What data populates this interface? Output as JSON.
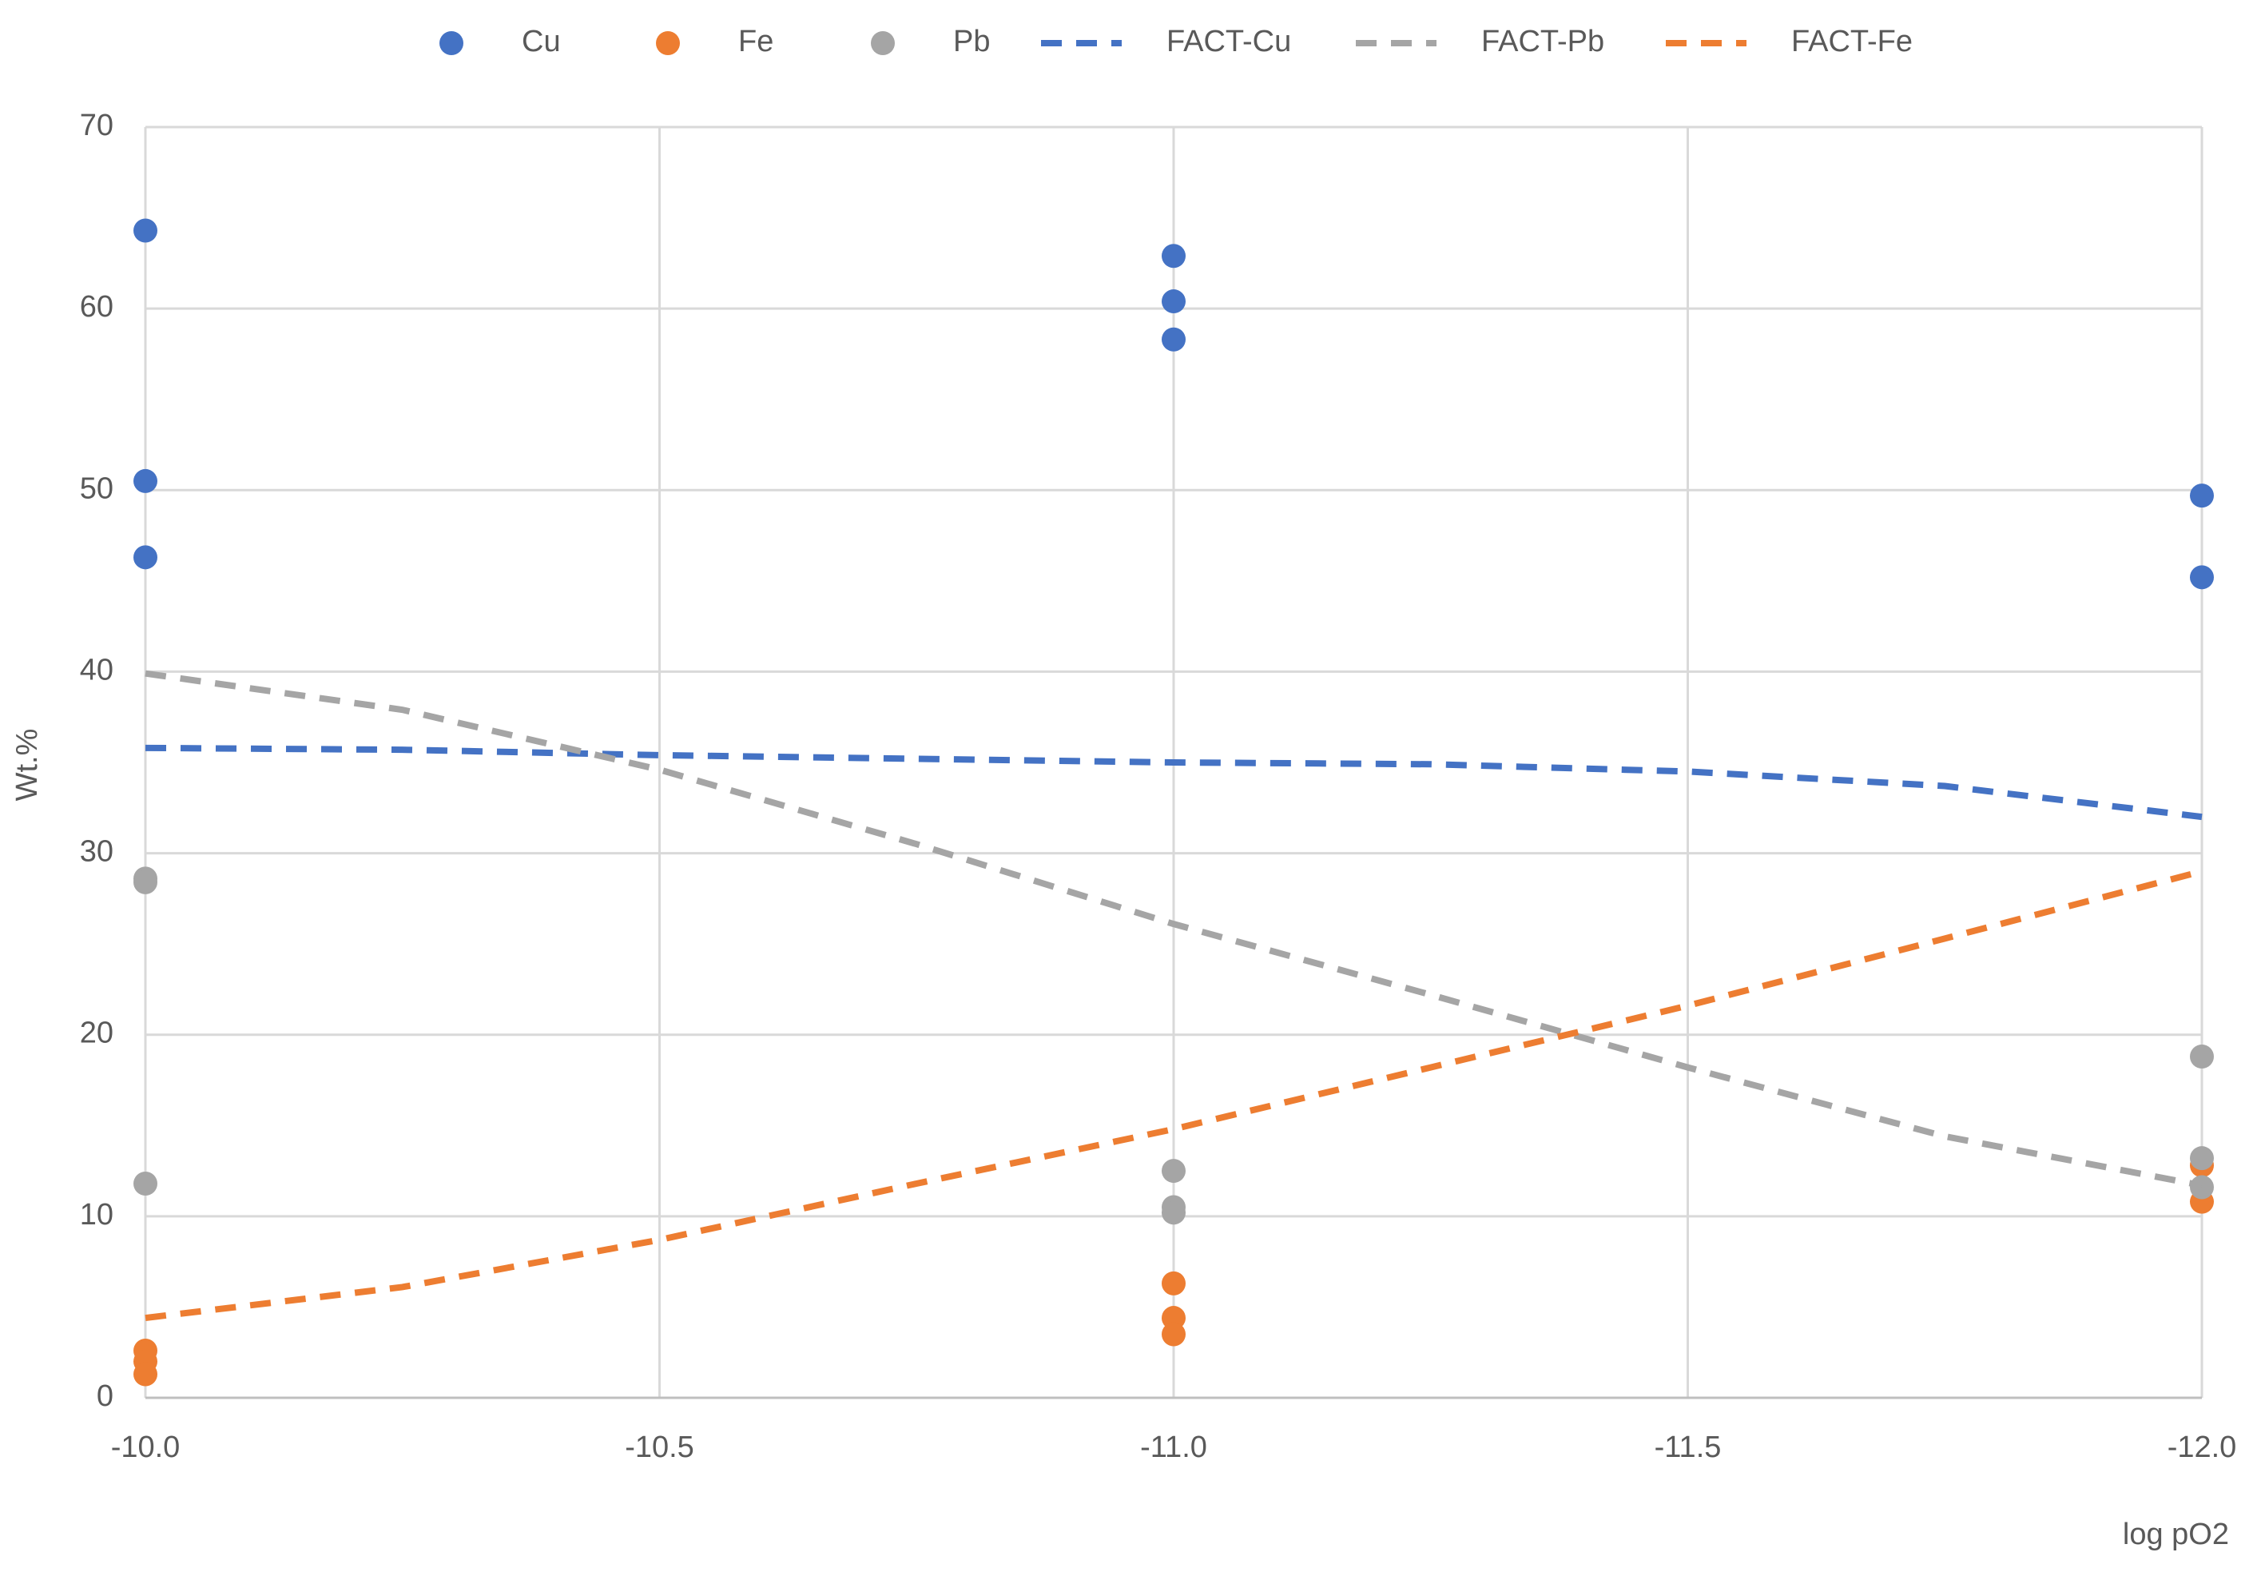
{
  "chart_data": {
    "type": "scatter",
    "x_label": "log pO2",
    "y_label": "Wt.%",
    "xlim": [
      -10,
      -12
    ],
    "xticks": [
      {
        "value": -10,
        "label": "-10.0"
      },
      -10.5,
      {
        "value": -11,
        "label": "-11.0"
      },
      -11.5,
      {
        "value": -12,
        "label": "-12.0"
      }
    ],
    "ylim": [
      0,
      70
    ],
    "yticks": [
      0,
      10,
      20,
      30,
      40,
      50,
      60,
      70
    ],
    "grid": true,
    "legend": "top",
    "series": [
      {
        "name": "Cu",
        "color": "#4472c4",
        "mode": "markers",
        "x": [
          -10,
          -10,
          -10,
          -11,
          -11,
          -11,
          -12,
          -12
        ],
        "values": [
          64.3,
          50.5,
          46.3,
          62.9,
          60.4,
          58.3,
          49.7,
          45.2
        ]
      },
      {
        "name": "Fe",
        "color": "#ed7d31",
        "mode": "markers",
        "x": [
          -10,
          -10,
          -10,
          -11,
          -11,
          -11,
          -12,
          -12
        ],
        "values": [
          2.6,
          2.0,
          1.3,
          6.3,
          4.4,
          3.5,
          12.8,
          10.8
        ]
      },
      {
        "name": "Pb",
        "color": "#a5a5a5",
        "mode": "markers",
        "x": [
          -10,
          -10,
          -10,
          -11,
          -11,
          -11,
          -12,
          -12,
          -12
        ],
        "values": [
          28.6,
          28.4,
          11.8,
          12.5,
          10.5,
          10.2,
          18.8,
          13.2,
          11.6
        ]
      },
      {
        "name": "FACT-Cu",
        "color": "#4472c4",
        "mode": "dashed",
        "x": [
          -10,
          -10.25,
          -10.5,
          -10.75,
          -11,
          -11.25,
          -11.5,
          -11.75,
          -12
        ],
        "values": [
          35.8,
          35.7,
          35.4,
          35.2,
          35.0,
          34.9,
          34.5,
          33.7,
          32.0
        ]
      },
      {
        "name": "FACT-Pb",
        "color": "#a5a5a5",
        "mode": "dashed",
        "x": [
          -10,
          -10.25,
          -10.5,
          -10.75,
          -11,
          -11.25,
          -11.5,
          -11.75,
          -12
        ],
        "values": [
          39.9,
          37.9,
          34.6,
          30.5,
          26.1,
          22.2,
          18.2,
          14.4,
          11.7
        ]
      },
      {
        "name": "FACT-Fe",
        "color": "#ed7d31",
        "mode": "dashed",
        "x": [
          -10,
          -10.25,
          -10.5,
          -10.75,
          -11,
          -11.25,
          -11.5,
          -11.75,
          -12
        ],
        "values": [
          4.4,
          6.1,
          8.7,
          11.8,
          14.8,
          18.2,
          21.6,
          25.3,
          29.0
        ]
      }
    ]
  }
}
